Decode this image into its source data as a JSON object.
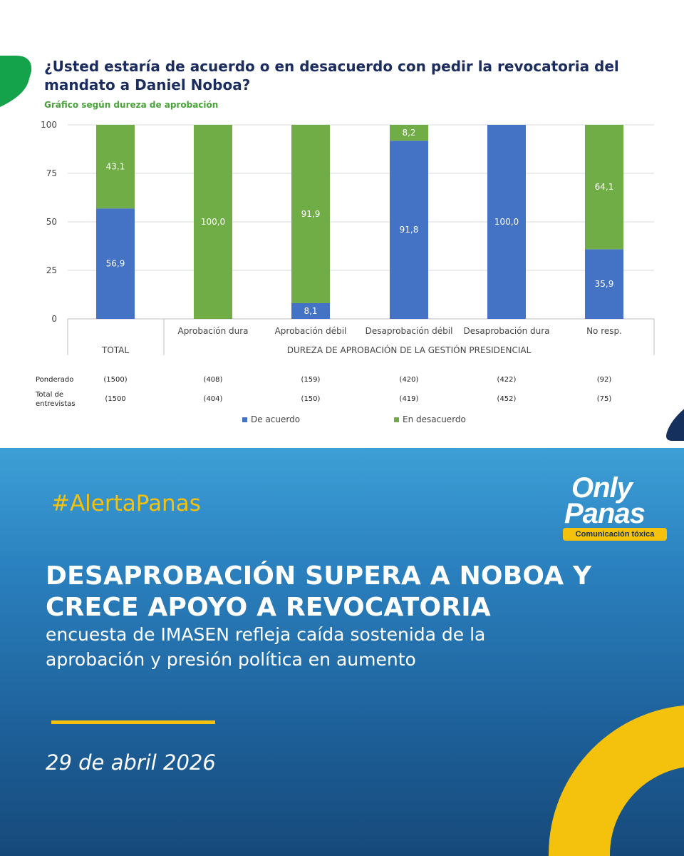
{
  "colors": {
    "de_acuerdo": "#4472c4",
    "en_desacuerdo": "#70ad47",
    "title": "#1b2c5e",
    "subtitle": "#4aa23b",
    "accent": "#f4c20d",
    "dark_blue": "#16305e",
    "green_shape": "#14a24b"
  },
  "chart_data": {
    "type": "bar",
    "stacked": true,
    "title": "¿Usted estaría de acuerdo o en desacuerdo con pedir la revocatoria del mandato a Daniel Noboa?",
    "subtitle": "Gráfico según dureza de aprobación",
    "categories": [
      "TOTAL",
      "Aprobación dura",
      "Aprobación débil",
      "Desaprobación débil",
      "Desaprobación dura",
      "No resp."
    ],
    "series": [
      {
        "name": "De acuerdo",
        "values": [
          56.9,
          0,
          8.1,
          91.8,
          100.0,
          35.9
        ],
        "labels": [
          "56,9",
          "",
          "8,1",
          "91,8",
          "100,0",
          "35,9"
        ]
      },
      {
        "name": "En desacuerdo",
        "values": [
          43.1,
          100.0,
          91.9,
          8.2,
          0,
          64.1
        ],
        "labels": [
          "43,1",
          "100,0",
          "91,9",
          "8,2",
          "",
          "64,1"
        ]
      }
    ],
    "ylim": [
      0,
      100
    ],
    "yticks": [
      "0",
      "25",
      "50",
      "75",
      "100"
    ],
    "group_labels": {
      "total": "TOTAL",
      "dureza": "DUREZA DE APROBACIÓN DE LA GESTIÓN PRESIDENCIAL"
    },
    "grid": true,
    "legend": "bottom"
  },
  "table": {
    "rows": [
      {
        "label": [
          "Ponderado"
        ],
        "values": [
          "(1500)",
          "(408)",
          "(159)",
          "(420)",
          "(422)",
          "(92)"
        ]
      },
      {
        "label": [
          "Total de",
          "entrevistas"
        ],
        "values": [
          "(1500",
          "(404)",
          "(150)",
          "(419)",
          "(452)",
          "(75)"
        ]
      }
    ]
  },
  "post": {
    "hashtag": "#AlertaPanas",
    "headline_lines": [
      "DESAPROBACIÓN SUPERA A NOBOA Y",
      "CRECE APOYO A REVOCATORIA"
    ],
    "deck_lines": [
      "encuesta de IMASEN refleja caída sostenida de la",
      "aprobación y presión política en aumento"
    ],
    "date": "29 de abril 2026"
  },
  "logo": {
    "line1": "Only",
    "line2": "Panas",
    "tagline": "Comunicación tóxica"
  }
}
